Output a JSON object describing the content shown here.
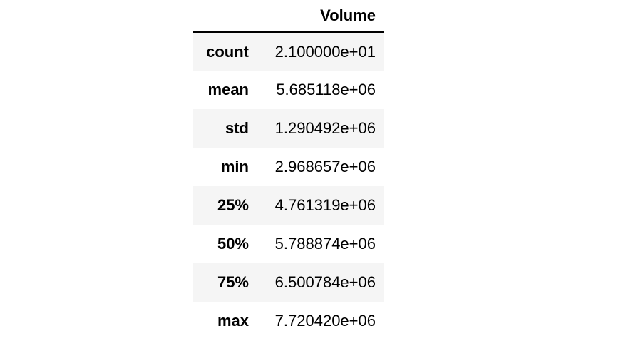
{
  "table": {
    "header": {
      "index_label": "",
      "columns": [
        "Volume"
      ]
    },
    "rows": [
      {
        "label": "count",
        "value": "2.100000e+01"
      },
      {
        "label": "mean",
        "value": "5.685118e+06"
      },
      {
        "label": "std",
        "value": "1.290492e+06"
      },
      {
        "label": "min",
        "value": "2.968657e+06"
      },
      {
        "label": "25%",
        "value": "4.761319e+06"
      },
      {
        "label": "50%",
        "value": "5.788874e+06"
      },
      {
        "label": "75%",
        "value": "6.500784e+06"
      },
      {
        "label": "max",
        "value": "7.720420e+06"
      }
    ]
  },
  "colors": {
    "stripe": "#f5f5f5",
    "background": "#ffffff",
    "text": "#000000"
  }
}
